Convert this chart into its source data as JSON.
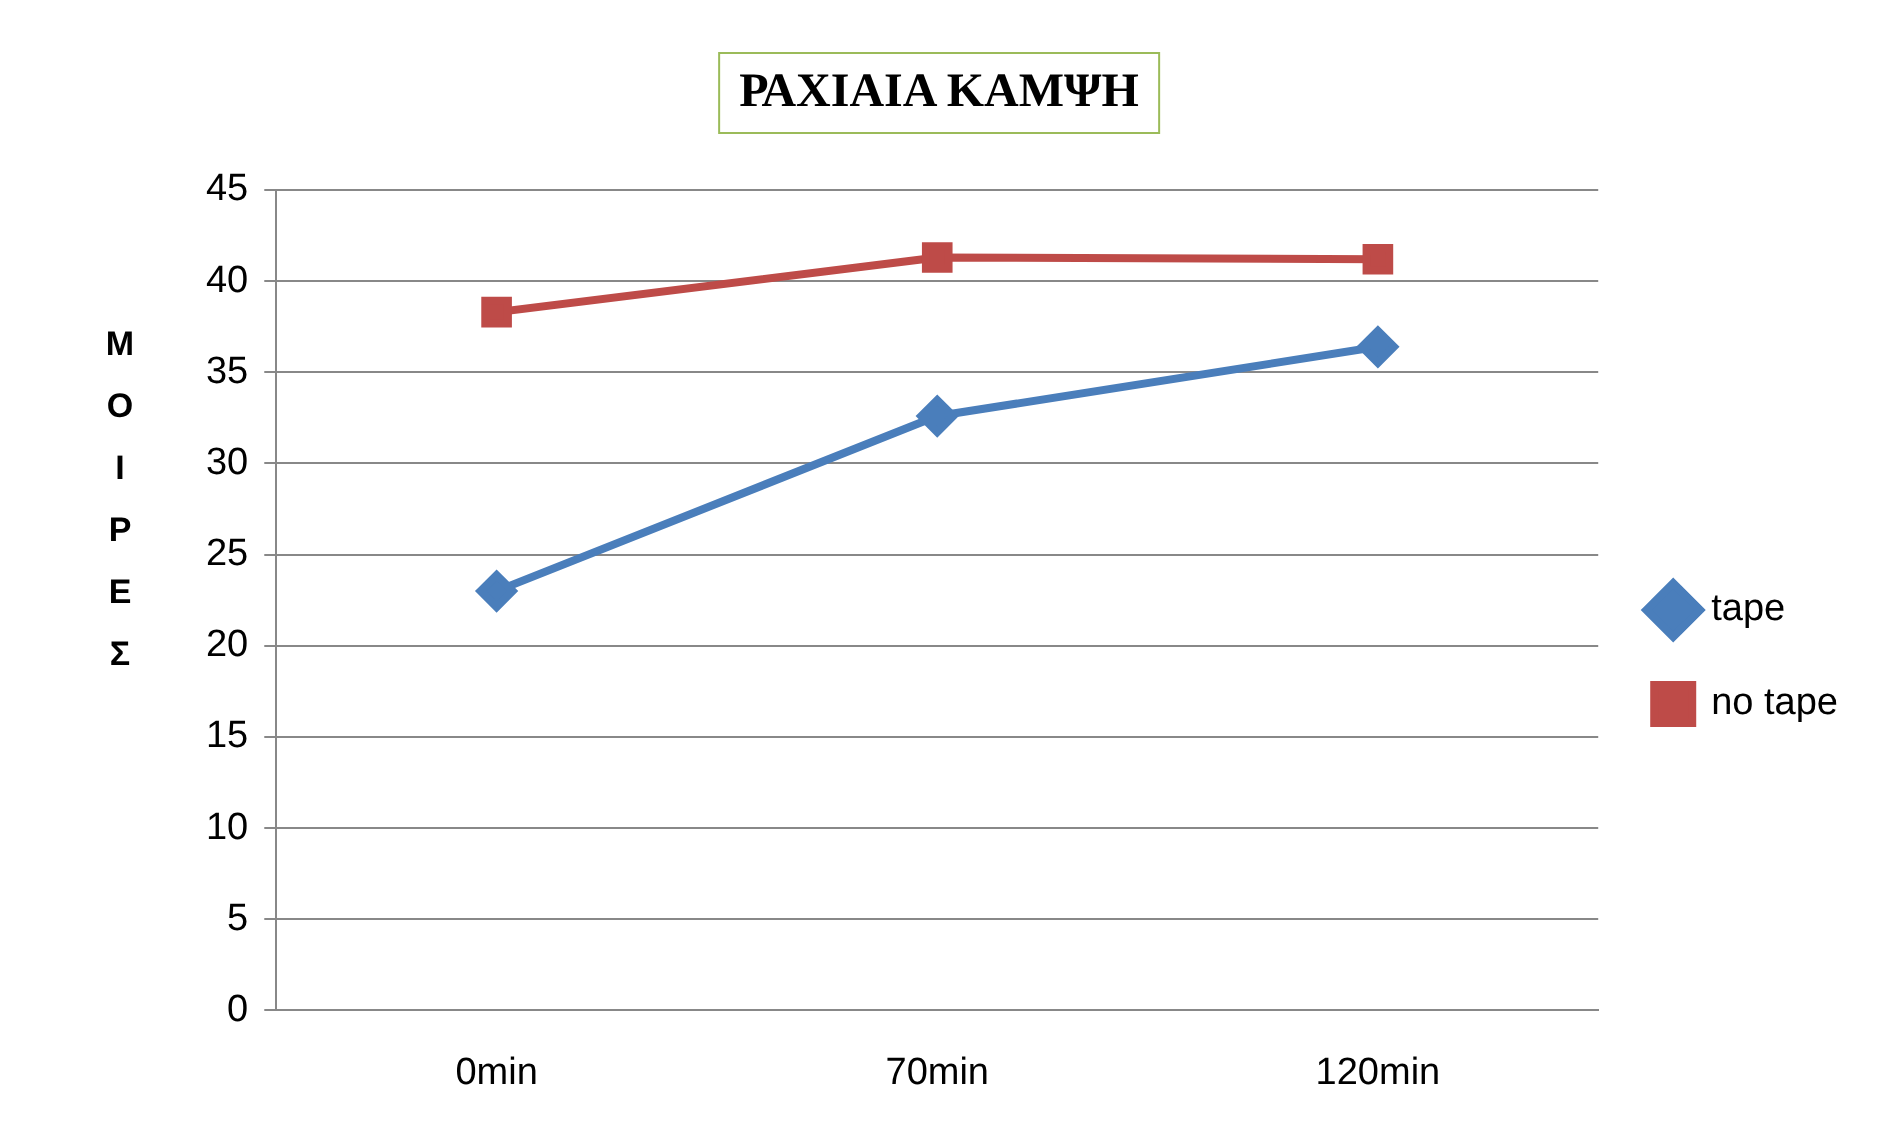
{
  "chart_data": {
    "type": "line",
    "title": "ΡΑΧΙΑΙΑ ΚΑΜΨΗ",
    "ylabel": "ΜΟΙΡΕΣ",
    "categories": [
      "0min",
      "70min",
      "120min"
    ],
    "series": [
      {
        "name": "tape",
        "color": "#4a7ebb",
        "marker": "diamond",
        "values": [
          23,
          32.6,
          36.4
        ]
      },
      {
        "name": "no tape",
        "color": "#be4b48",
        "marker": "square",
        "values": [
          38.3,
          41.3,
          41.2
        ]
      }
    ],
    "ylim": [
      0,
      45
    ],
    "yticks": [
      0,
      5,
      10,
      15,
      20,
      25,
      30,
      35,
      40,
      45
    ],
    "grid": "y",
    "legend": "right"
  }
}
